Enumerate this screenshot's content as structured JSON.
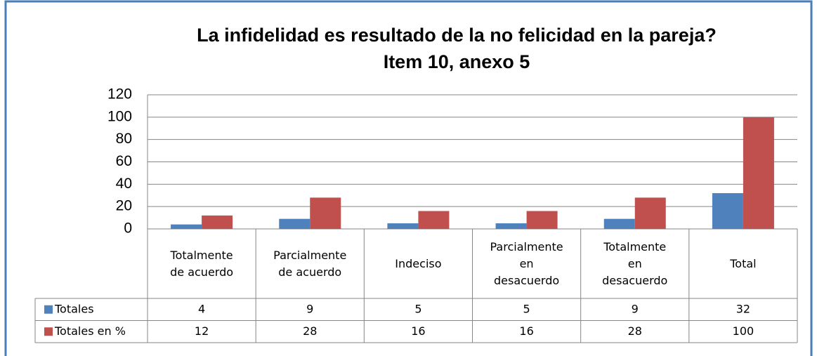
{
  "chart_data": {
    "type": "bar",
    "title": "La infidelidad es resultado de la no felicidad en la pareja?",
    "subtitle": "Item 10, anexo 5",
    "categories": [
      "Totalmente de acuerdo",
      "Parcialmente de acuerdo",
      "Indeciso",
      "Parcialmente en desacuerdo",
      "Totalmente en desacuerdo",
      "Total"
    ],
    "series": [
      {
        "name": "Totales",
        "color": "#4f81bd",
        "values": [
          4,
          9,
          5,
          5,
          9,
          32
        ]
      },
      {
        "name": "Totales en %",
        "color": "#c0504d",
        "values": [
          12,
          28,
          16,
          16,
          28,
          100
        ]
      }
    ],
    "ylim": [
      0,
      120
    ],
    "yticks": [
      0,
      20,
      40,
      60,
      80,
      100,
      120
    ],
    "grid": true,
    "data_table": true
  }
}
